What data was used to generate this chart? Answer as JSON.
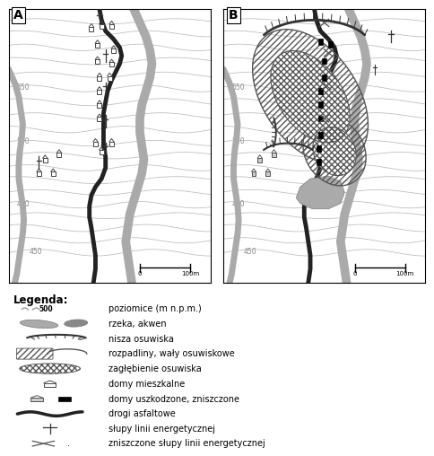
{
  "fig_width": 4.84,
  "fig_height": 5.08,
  "dpi": 100,
  "legend_title": "Legenda:",
  "legend_items": [
    "poziomice (m n.p.m.)",
    "rzeka, akwen",
    "nisza osuwiska",
    "rozpadliny, wały osuwiskowe",
    "zagłębienie osuwiska",
    "domy mieszkalne",
    "domy uszkodzone, zniszczone",
    "drogi asfaltowe",
    "słupy linii energetycznej",
    "zniszczone słupy linii energetycznej"
  ]
}
